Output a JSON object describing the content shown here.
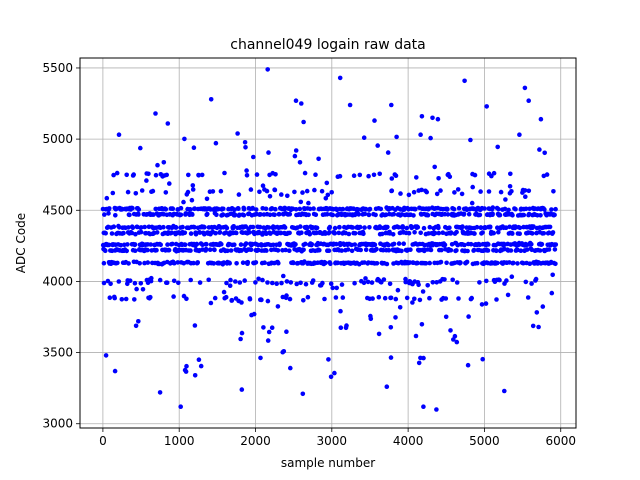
{
  "chart_data": {
    "type": "scatter",
    "title": "channel049 logain raw data",
    "xlabel": "sample number",
    "ylabel": "ADC Code",
    "xlim": [
      -300,
      6200
    ],
    "ylim": [
      2970,
      5570
    ],
    "xticks": [
      0,
      1000,
      2000,
      3000,
      4000,
      5000,
      6000
    ],
    "yticks": [
      3000,
      3500,
      4000,
      4500,
      5000,
      5500
    ],
    "grid": true,
    "marker_color": "#0000ff",
    "sample_count": 5935,
    "dense_bands": [
      4130,
      4220,
      4260,
      4340,
      4380,
      4470,
      4510
    ],
    "sparse_bands": [
      3880,
      3990,
      4010,
      4630,
      4750
    ],
    "outlier_points": [
      {
        "x": 2160,
        "y": 5490
      },
      {
        "x": 3110,
        "y": 5430
      },
      {
        "x": 4740,
        "y": 5410
      },
      {
        "x": 5530,
        "y": 5360
      },
      {
        "x": 1420,
        "y": 5280
      },
      {
        "x": 2530,
        "y": 5270
      },
      {
        "x": 2600,
        "y": 5250
      },
      {
        "x": 3240,
        "y": 5240
      },
      {
        "x": 3780,
        "y": 5240
      },
      {
        "x": 5030,
        "y": 5230
      },
      {
        "x": 5580,
        "y": 5270
      },
      {
        "x": 690,
        "y": 5180
      },
      {
        "x": 850,
        "y": 5110
      },
      {
        "x": 4180,
        "y": 5160
      },
      {
        "x": 4320,
        "y": 5150
      },
      {
        "x": 4390,
        "y": 5140
      },
      {
        "x": 5740,
        "y": 5140
      },
      {
        "x": 2630,
        "y": 5120
      },
      {
        "x": 3560,
        "y": 5130
      },
      {
        "x": 1020,
        "y": 3120
      },
      {
        "x": 4200,
        "y": 3120
      },
      {
        "x": 4370,
        "y": 3100
      },
      {
        "x": 2620,
        "y": 3210
      },
      {
        "x": 750,
        "y": 3220
      },
      {
        "x": 5260,
        "y": 3230
      },
      {
        "x": 1820,
        "y": 3240
      },
      {
        "x": 3720,
        "y": 3260
      },
      {
        "x": 2990,
        "y": 3330
      },
      {
        "x": 160,
        "y": 3370
      },
      {
        "x": 1210,
        "y": 3340
      }
    ]
  }
}
